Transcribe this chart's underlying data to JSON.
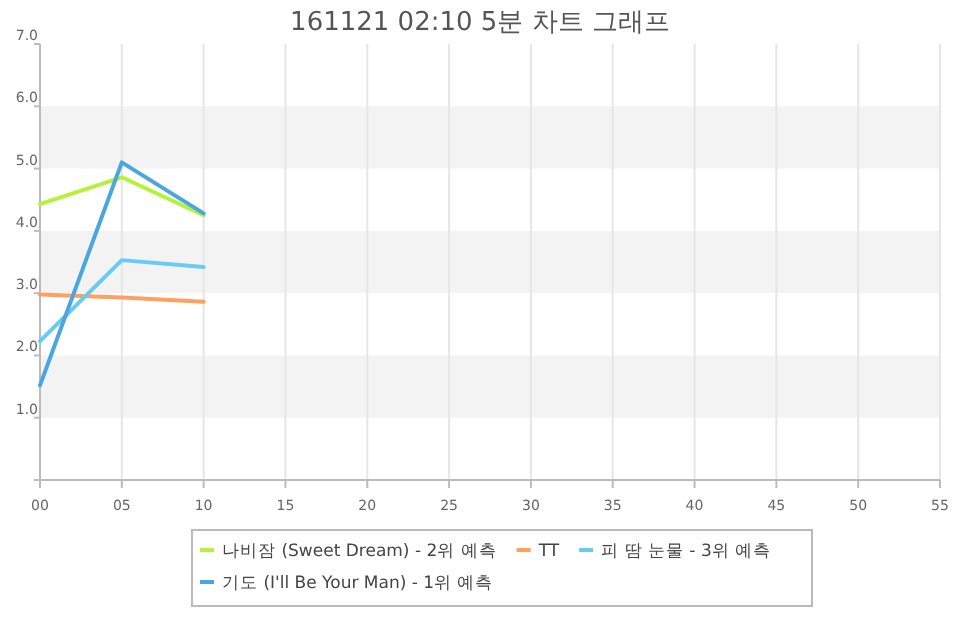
{
  "chart_data": {
    "type": "line",
    "title": "161121 02:10 5분 차트 그래프",
    "x": [
      0,
      5,
      10
    ],
    "series": [
      {
        "name": "나비잠 (Sweet Dream) - 2위 예측",
        "color": "#b5f23a",
        "values": [
          4.43,
          4.86,
          4.25
        ]
      },
      {
        "name": "TT",
        "color": "#ffa060",
        "values": [
          2.98,
          2.93,
          2.86
        ]
      },
      {
        "name": "피 땀 눈물 - 3위 예측",
        "color": "#66ccf5",
        "values": [
          2.23,
          3.53,
          3.42
        ]
      },
      {
        "name": "기도 (I'll Be Your Man) - 1위 예측",
        "color": "#4aa6e0",
        "values": [
          1.52,
          5.1,
          4.28
        ]
      }
    ],
    "xlim": [
      0,
      55
    ],
    "xticks": [
      {
        "value": 0,
        "label": "00"
      },
      {
        "value": 5,
        "label": "05"
      },
      {
        "value": 10,
        "label": "10"
      },
      15,
      20,
      25,
      30,
      35,
      40,
      45,
      50,
      55
    ],
    "ylim": [
      0,
      7
    ],
    "yticks": [
      {
        "value": 0,
        "label": null
      },
      {
        "value": 1,
        "label": "1.0"
      },
      {
        "value": 2,
        "label": "2.0"
      },
      {
        "value": 3,
        "label": "3.0"
      },
      {
        "value": 4,
        "label": "4.0"
      },
      {
        "value": 5,
        "label": "5.0"
      },
      {
        "value": 6,
        "label": "6.0"
      },
      {
        "value": 7,
        "label": "7.0"
      }
    ],
    "bands": [
      {
        "axis": "y",
        "from": 1,
        "to": 2,
        "color": "#f3f3f3"
      },
      {
        "axis": "y",
        "from": 3,
        "to": 4,
        "color": "#f3f3f3"
      },
      {
        "axis": "y",
        "from": 5,
        "to": 6,
        "color": "#f3f3f3"
      }
    ],
    "grid": "x",
    "legend": "bottom",
    "marker": "none",
    "line_style": "solid"
  }
}
